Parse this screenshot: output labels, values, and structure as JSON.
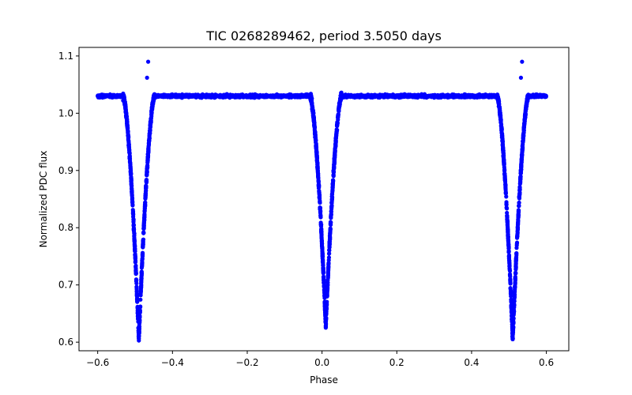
{
  "chart_data": {
    "type": "scatter",
    "title": "TIC 0268289462, period 3.5050 days",
    "xlabel": "Phase",
    "ylabel": "Normalized PDC flux",
    "xlim": [
      -0.65,
      0.66
    ],
    "ylim": [
      0.585,
      1.115
    ],
    "xticks": [
      -0.6,
      -0.4,
      -0.2,
      0.0,
      0.2,
      0.4,
      0.6
    ],
    "xtick_labels": [
      "−0.6",
      "−0.4",
      "−0.2",
      "0.0",
      "0.2",
      "0.4",
      "0.6"
    ],
    "yticks": [
      0.6,
      0.7,
      0.8,
      0.9,
      1.0,
      1.1
    ],
    "ytick_labels": [
      "0.6",
      "0.7",
      "0.8",
      "0.9",
      "1.0",
      "1.1"
    ],
    "grid": false,
    "marker_color": "#0000ff",
    "series": [
      {
        "name": "flux",
        "baseline": 1.03,
        "x_range": [
          -0.6,
          0.6
        ],
        "eclipses": [
          {
            "center": -0.49,
            "half_width": 0.042,
            "min_flux": 0.605
          },
          {
            "center": 0.01,
            "half_width": 0.042,
            "min_flux": 0.628
          },
          {
            "center": 0.51,
            "half_width": 0.042,
            "min_flux": 0.605
          }
        ],
        "outliers": [
          {
            "x": -0.465,
            "y": 1.09
          },
          {
            "x": -0.468,
            "y": 1.062
          },
          {
            "x": 0.535,
            "y": 1.09
          },
          {
            "x": 0.532,
            "y": 1.062
          }
        ]
      }
    ]
  }
}
